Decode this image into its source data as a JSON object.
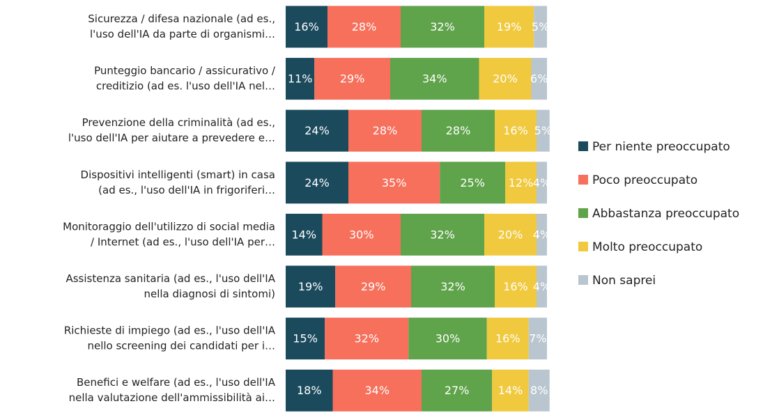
{
  "chart_data": {
    "type": "stacked-bar-horizontal",
    "categories": [
      [
        "Sicurezza / difesa nazionale (ad es.,",
        "l'uso dell'IA da parte di organismi…"
      ],
      [
        "Punteggio bancario / assicurativo /",
        "creditizio (ad es. l'uso dell'IA nel…"
      ],
      [
        "Prevenzione della criminalità (ad es.,",
        "l'uso dell'IA per aiutare a prevedere e…"
      ],
      [
        "Dispositivi intelligenti (smart) in casa",
        "(ad es., l'uso dell'IA in frigoriferi…"
      ],
      [
        "Monitoraggio dell'utilizzo di social media",
        "/ Internet (ad es., l'uso dell'IA per…"
      ],
      [
        "Assistenza sanitaria (ad es., l'uso dell'IA",
        "nella diagnosi di sintomi)"
      ],
      [
        "Richieste di impiego (ad es., l'uso dell'IA",
        "nello screening dei candidati per i…"
      ],
      [
        "Benefici e welfare (ad es., l'uso dell'IA",
        "nella valutazione dell'ammissibilità ai…"
      ]
    ],
    "series": [
      {
        "name": "Per niente preoccupato",
        "color": "#1b4a5d",
        "values": [
          16,
          11,
          24,
          24,
          14,
          19,
          15,
          18
        ],
        "value_labels": [
          "16%",
          "11%",
          "24%",
          "24%",
          "14%",
          "19%",
          "15%",
          "18%"
        ]
      },
      {
        "name": "Poco preoccupato",
        "color": "#f6705c",
        "values": [
          28,
          29,
          28,
          35,
          30,
          29,
          32,
          34
        ],
        "value_labels": [
          "28%",
          "29%",
          "28%",
          "35%",
          "30%",
          "29%",
          "32%",
          "34%"
        ]
      },
      {
        "name": "Abbastanza preoccupato",
        "color": "#5fa34b",
        "values": [
          32,
          34,
          28,
          25,
          32,
          32,
          30,
          27
        ],
        "value_labels": [
          "32%",
          "34%",
          "28%",
          "25%",
          "32%",
          "32%",
          "30%",
          "27%"
        ]
      },
      {
        "name": "Molto preoccupato",
        "color": "#f0c93e",
        "values": [
          19,
          20,
          16,
          12,
          20,
          16,
          16,
          14
        ],
        "value_labels": [
          "19%",
          "20%",
          "16%",
          "12%",
          "20%",
          "16%",
          "16%",
          "14%"
        ]
      },
      {
        "name": "Non saprei",
        "color": "#b9c6cf",
        "values": [
          5,
          6,
          5,
          4,
          4,
          4,
          7,
          8
        ],
        "value_labels": [
          "5%",
          "6%",
          "5%",
          "4%",
          "4%",
          "4%",
          "7%",
          "8%"
        ]
      }
    ],
    "xlim": [
      0,
      100
    ],
    "legend": "right"
  }
}
